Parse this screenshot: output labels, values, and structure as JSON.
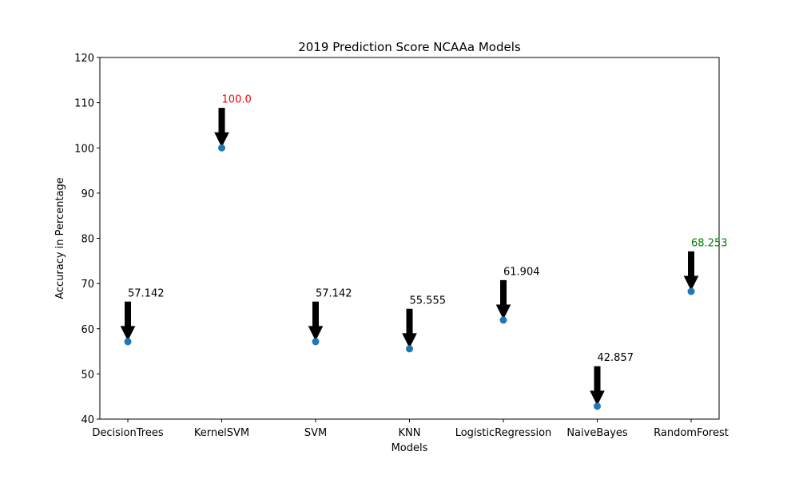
{
  "chart_data": {
    "type": "scatter",
    "title": "2019 Prediction Score NCAAa Models",
    "xlabel": "Models",
    "ylabel": "Accuracy in Percentage",
    "categories": [
      "DecisionTrees",
      "KernelSVM",
      "SVM",
      "KNN",
      "LogisticRegression",
      "NaiveBayes",
      "RandomForest"
    ],
    "values": [
      57.142,
      100.0,
      57.142,
      55.555,
      61.904,
      42.857,
      68.253
    ],
    "annotations": [
      {
        "text": "57.142",
        "color": "#000000"
      },
      {
        "text": "100.0",
        "color": "#ff0000"
      },
      {
        "text": "57.142",
        "color": "#000000"
      },
      {
        "text": "55.555",
        "color": "#000000"
      },
      {
        "text": "61.904",
        "color": "#000000"
      },
      {
        "text": "42.857",
        "color": "#000000"
      },
      {
        "text": "68.253",
        "color": "#008000"
      }
    ],
    "ylim": [
      40,
      120
    ],
    "yticks": [
      40,
      50,
      60,
      70,
      80,
      90,
      100,
      110,
      120
    ],
    "grid": false,
    "marker_color": "#1f77b4",
    "arrow_color": "#000000"
  }
}
